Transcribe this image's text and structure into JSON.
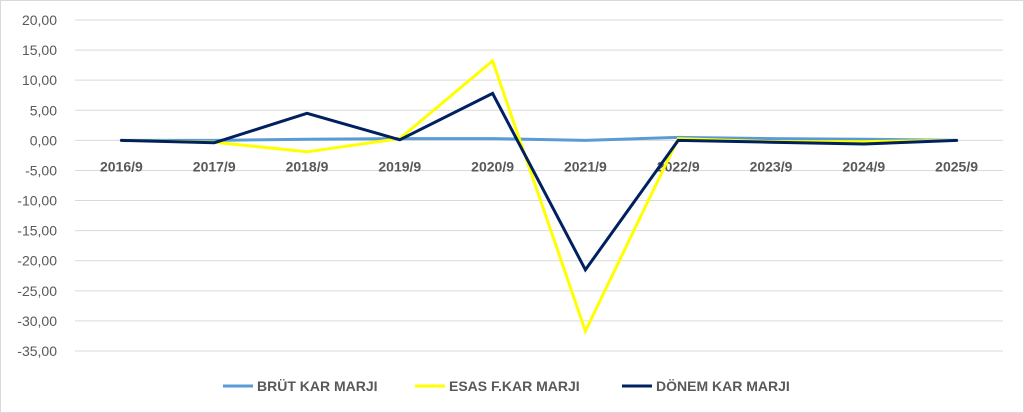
{
  "chart_data": {
    "type": "line",
    "title": "",
    "xlabel": "",
    "ylabel": "",
    "categories": [
      "2016/9",
      "2017/9",
      "2018/9",
      "2019/9",
      "2020/9",
      "2021/9",
      "2022/9",
      "2023/9",
      "2024/9",
      "2025/9"
    ],
    "ylim": [
      -35,
      20
    ],
    "yticks": [
      20,
      15,
      10,
      5,
      0,
      -5,
      -10,
      -15,
      -20,
      -25,
      -30,
      -35
    ],
    "ytick_labels": [
      "20,00",
      "15,00",
      "10,00",
      "5,00",
      "0,00",
      "-5,00",
      "-10,00",
      "-15,00",
      "-20,00",
      "-25,00",
      "-30,00",
      "-35,00"
    ],
    "grid": true,
    "legend_position": "bottom",
    "series": [
      {
        "name": "BRÜT KAR MARJI",
        "color": "#5B9BD5",
        "values": [
          0.0,
          0.0,
          0.2,
          0.3,
          0.3,
          0.0,
          0.5,
          0.3,
          0.2,
          0.0
        ]
      },
      {
        "name": "ESAS F.KAR MARJI",
        "color": "#FFFF00",
        "values": [
          0.0,
          -0.3,
          -1.9,
          0.3,
          13.2,
          -31.7,
          0.3,
          -0.2,
          -0.2,
          0.0
        ]
      },
      {
        "name": "DÖNEM KAR MARJI",
        "color": "#002060",
        "values": [
          0.0,
          -0.4,
          4.5,
          0.1,
          7.8,
          -21.5,
          0.0,
          -0.3,
          -0.6,
          0.0
        ]
      }
    ]
  }
}
